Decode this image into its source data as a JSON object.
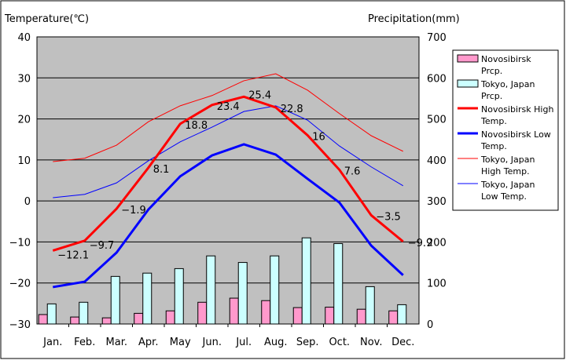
{
  "chart_data": {
    "type": "bar+line",
    "title": "",
    "ylabel_left": "Temperature(℃)",
    "ylabel_right": "Precipitation(mm)",
    "ylim_left": [
      -30,
      40
    ],
    "ylim_right": [
      0,
      700
    ],
    "yticks_left": [
      "40",
      "30",
      "20",
      "10",
      "0",
      "-10",
      "-20",
      "-30"
    ],
    "yticks_right": [
      "700",
      "600",
      "500",
      "400",
      "300",
      "200",
      "100",
      "0"
    ],
    "categories": [
      "Jan.",
      "Feb.",
      "Mar.",
      "Apr.",
      "May",
      "Jun.",
      "Jul.",
      "Aug.",
      "Sep.",
      "Oct.",
      "Nov.",
      "Dec."
    ],
    "grid": true,
    "legend_position": "right",
    "bars": [
      {
        "name": "Novosibirsk Prcp.",
        "legend": [
          "Novosibirsk",
          "Prcp."
        ],
        "color": "#ff99cc",
        "values": [
          23,
          17,
          15,
          26,
          32,
          53,
          63,
          57,
          40,
          41,
          36,
          32
        ]
      },
      {
        "name": "Tokyo, Japan Prcp.",
        "legend": [
          "Tokyo, Japan",
          "Prcp."
        ],
        "color": "#ccffff",
        "values": [
          49,
          53,
          116,
          124,
          135,
          166,
          150,
          166,
          210,
          196,
          91,
          47
        ]
      }
    ],
    "lines": [
      {
        "name": "Novosibirsk High Temp.",
        "legend": [
          "Novosibirsk High",
          "Temp."
        ],
        "color": "#ff0000",
        "width": 3,
        "labels": true,
        "values": [
          -12.1,
          -9.7,
          -1.9,
          8.1,
          18.8,
          23.4,
          25.4,
          22.8,
          16,
          7.6,
          -3.5,
          -9.9
        ],
        "value_labels": [
          "-12.1",
          "-9.7",
          "-1.9",
          "8.1",
          "18.8",
          "23.4",
          "25.4",
          "22.8",
          "16",
          "7.6",
          "-3.5",
          "-9.9"
        ]
      },
      {
        "name": "Novosibirsk Low Temp.",
        "legend": [
          "Novosibirsk Low",
          "Temp."
        ],
        "color": "#0000ff",
        "width": 3,
        "labels": false,
        "values": [
          -21.0,
          -19.7,
          -12.6,
          -2.1,
          6.0,
          11.1,
          13.8,
          11.3,
          5.4,
          -0.4,
          -10.9,
          -18.1
        ]
      },
      {
        "name": "Tokyo, Japan High Temp.",
        "legend": [
          "Tokyo, Japan",
          "High Temp."
        ],
        "color": "#ff0000",
        "width": 1,
        "labels": false,
        "values": [
          9.6,
          10.4,
          13.6,
          19.3,
          23.2,
          25.7,
          29.3,
          31.0,
          27.0,
          21.3,
          15.9,
          12.1
        ]
      },
      {
        "name": "Tokyo, Japan Low Temp.",
        "legend": [
          "Tokyo, Japan",
          "Low Temp."
        ],
        "color": "#0000ff",
        "width": 1,
        "labels": false,
        "values": [
          0.8,
          1.6,
          4.4,
          9.8,
          14.4,
          18.0,
          21.8,
          23.2,
          19.7,
          13.4,
          8.3,
          3.7
        ]
      }
    ]
  }
}
